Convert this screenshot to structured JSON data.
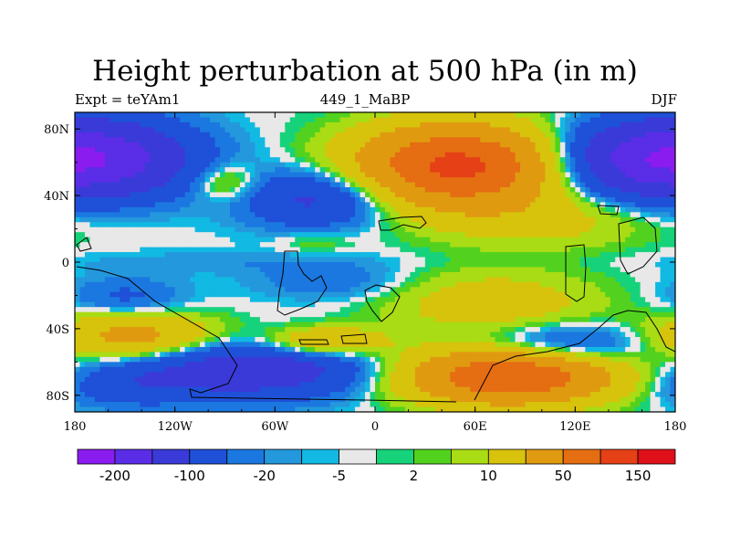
{
  "chart_data": {
    "type": "heatmap",
    "title": "Height perturbation at 500 hPa (in m)",
    "subtitle_left": "Expt = teYAm1",
    "subtitle_center": "449_1_MaBP",
    "subtitle_right": "DJF",
    "x_ticks": [
      {
        "value": -180,
        "label": "180"
      },
      {
        "value": -120,
        "label": "120W"
      },
      {
        "value": -60,
        "label": "60W"
      },
      {
        "value": 0,
        "label": "0"
      },
      {
        "value": 60,
        "label": "60E"
      },
      {
        "value": 120,
        "label": "120E"
      },
      {
        "value": 180,
        "label": "180"
      }
    ],
    "y_ticks": [
      {
        "value": 80,
        "label": "80N"
      },
      {
        "value": 40,
        "label": "40N"
      },
      {
        "value": 0,
        "label": "0"
      },
      {
        "value": -40,
        "label": "40S"
      },
      {
        "value": -80,
        "label": "80S"
      }
    ],
    "xlim": [
      -180,
      180
    ],
    "ylim": [
      -90,
      90
    ],
    "levels": [
      -200,
      -150,
      -100,
      -50,
      -20,
      -10,
      -5,
      -2,
      2,
      5,
      10,
      20,
      50,
      100,
      150,
      200
    ],
    "colorbar_colors": [
      "#8b1cf0",
      "#5a2de6",
      "#3a3ad8",
      "#1f50d8",
      "#1b78e0",
      "#2498dc",
      "#11b9e3",
      "#e8e8e8",
      "#16d27a",
      "#52d21e",
      "#a9dc14",
      "#d7c30c",
      "#e09a10",
      "#e56d12",
      "#e54016",
      "#e0101a"
    ],
    "colorbar_labels": [
      {
        "level": -200,
        "label": "-200"
      },
      {
        "level": -100,
        "label": "-100"
      },
      {
        "level": -20,
        "label": "-20"
      },
      {
        "level": -5,
        "label": "-5"
      },
      {
        "level": 2,
        "label": "2"
      },
      {
        "level": 10,
        "label": "10"
      },
      {
        "level": 50,
        "label": "50"
      },
      {
        "level": 150,
        "label": "150"
      }
    ],
    "field_anomalies": [
      {
        "lon": -160,
        "lat": 62,
        "value": -95,
        "sx": 38,
        "sy": 16
      },
      {
        "lon": 160,
        "lat": 62,
        "value": -95,
        "sx": 38,
        "sy": 16
      },
      {
        "lon": 50,
        "lat": 58,
        "value": 165,
        "sx": 42,
        "sy": 17
      },
      {
        "lon": -90,
        "lat": 48,
        "value": 30,
        "sx": 14,
        "sy": 8
      },
      {
        "lon": -35,
        "lat": 38,
        "value": -60,
        "sx": 30,
        "sy": 12
      },
      {
        "lon": 105,
        "lat": 25,
        "value": 26,
        "sx": 48,
        "sy": 12
      },
      {
        "lon": -35,
        "lat": 12,
        "value": 12,
        "sx": 16,
        "sy": 5
      },
      {
        "lon": -90,
        "lat": 0,
        "value": -8,
        "sx": 80,
        "sy": 5
      },
      {
        "lon": -25,
        "lat": -12,
        "value": -18,
        "sx": 34,
        "sy": 8
      },
      {
        "lon": -150,
        "lat": -22,
        "value": -26,
        "sx": 25,
        "sy": 9
      },
      {
        "lon": 70,
        "lat": -25,
        "value": 35,
        "sx": 45,
        "sy": 14
      },
      {
        "lon": -145,
        "lat": -45,
        "value": 70,
        "sx": 35,
        "sy": 10
      },
      {
        "lon": -30,
        "lat": -48,
        "value": 60,
        "sx": 25,
        "sy": 6
      },
      {
        "lon": 110,
        "lat": -50,
        "value": -50,
        "sx": 40,
        "sy": 9
      },
      {
        "lon": -75,
        "lat": -65,
        "value": -80,
        "sx": 55,
        "sy": 12
      },
      {
        "lon": 80,
        "lat": -68,
        "value": 150,
        "sx": 45,
        "sy": 12
      },
      {
        "lon": -155,
        "lat": -75,
        "value": -25,
        "sx": 30,
        "sy": 9
      }
    ]
  }
}
